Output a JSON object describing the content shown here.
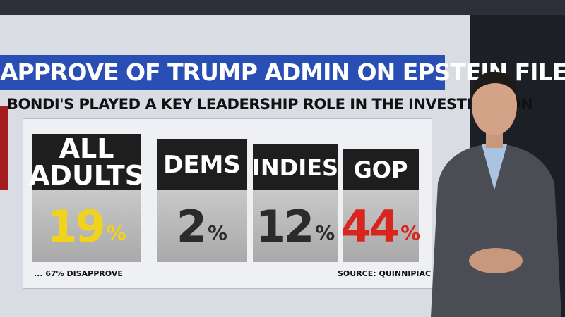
{
  "header": {
    "title": "APPROVE OF TRUMP ADMIN ON EPSTEIN FILES",
    "subtitle": "BONDI'S PLAYED A KEY LEADERSHIP ROLE IN THE INVESTIGATION"
  },
  "panels": [
    {
      "label": "ALL ADULTS",
      "value": "19",
      "unit": "%",
      "color": "#f2d31b"
    },
    {
      "label": "DEMS",
      "value": "2",
      "unit": "%",
      "color": "#2b2b2b"
    },
    {
      "label": "INDIES",
      "value": "12",
      "unit": "%",
      "color": "#2b2b2b"
    },
    {
      "label": "GOP",
      "value": "44",
      "unit": "%",
      "color": "#d8261f"
    }
  ],
  "footnote": "... 67% DISAPPROVE",
  "source": "SOURCE: QUINNIPIAC U"
}
